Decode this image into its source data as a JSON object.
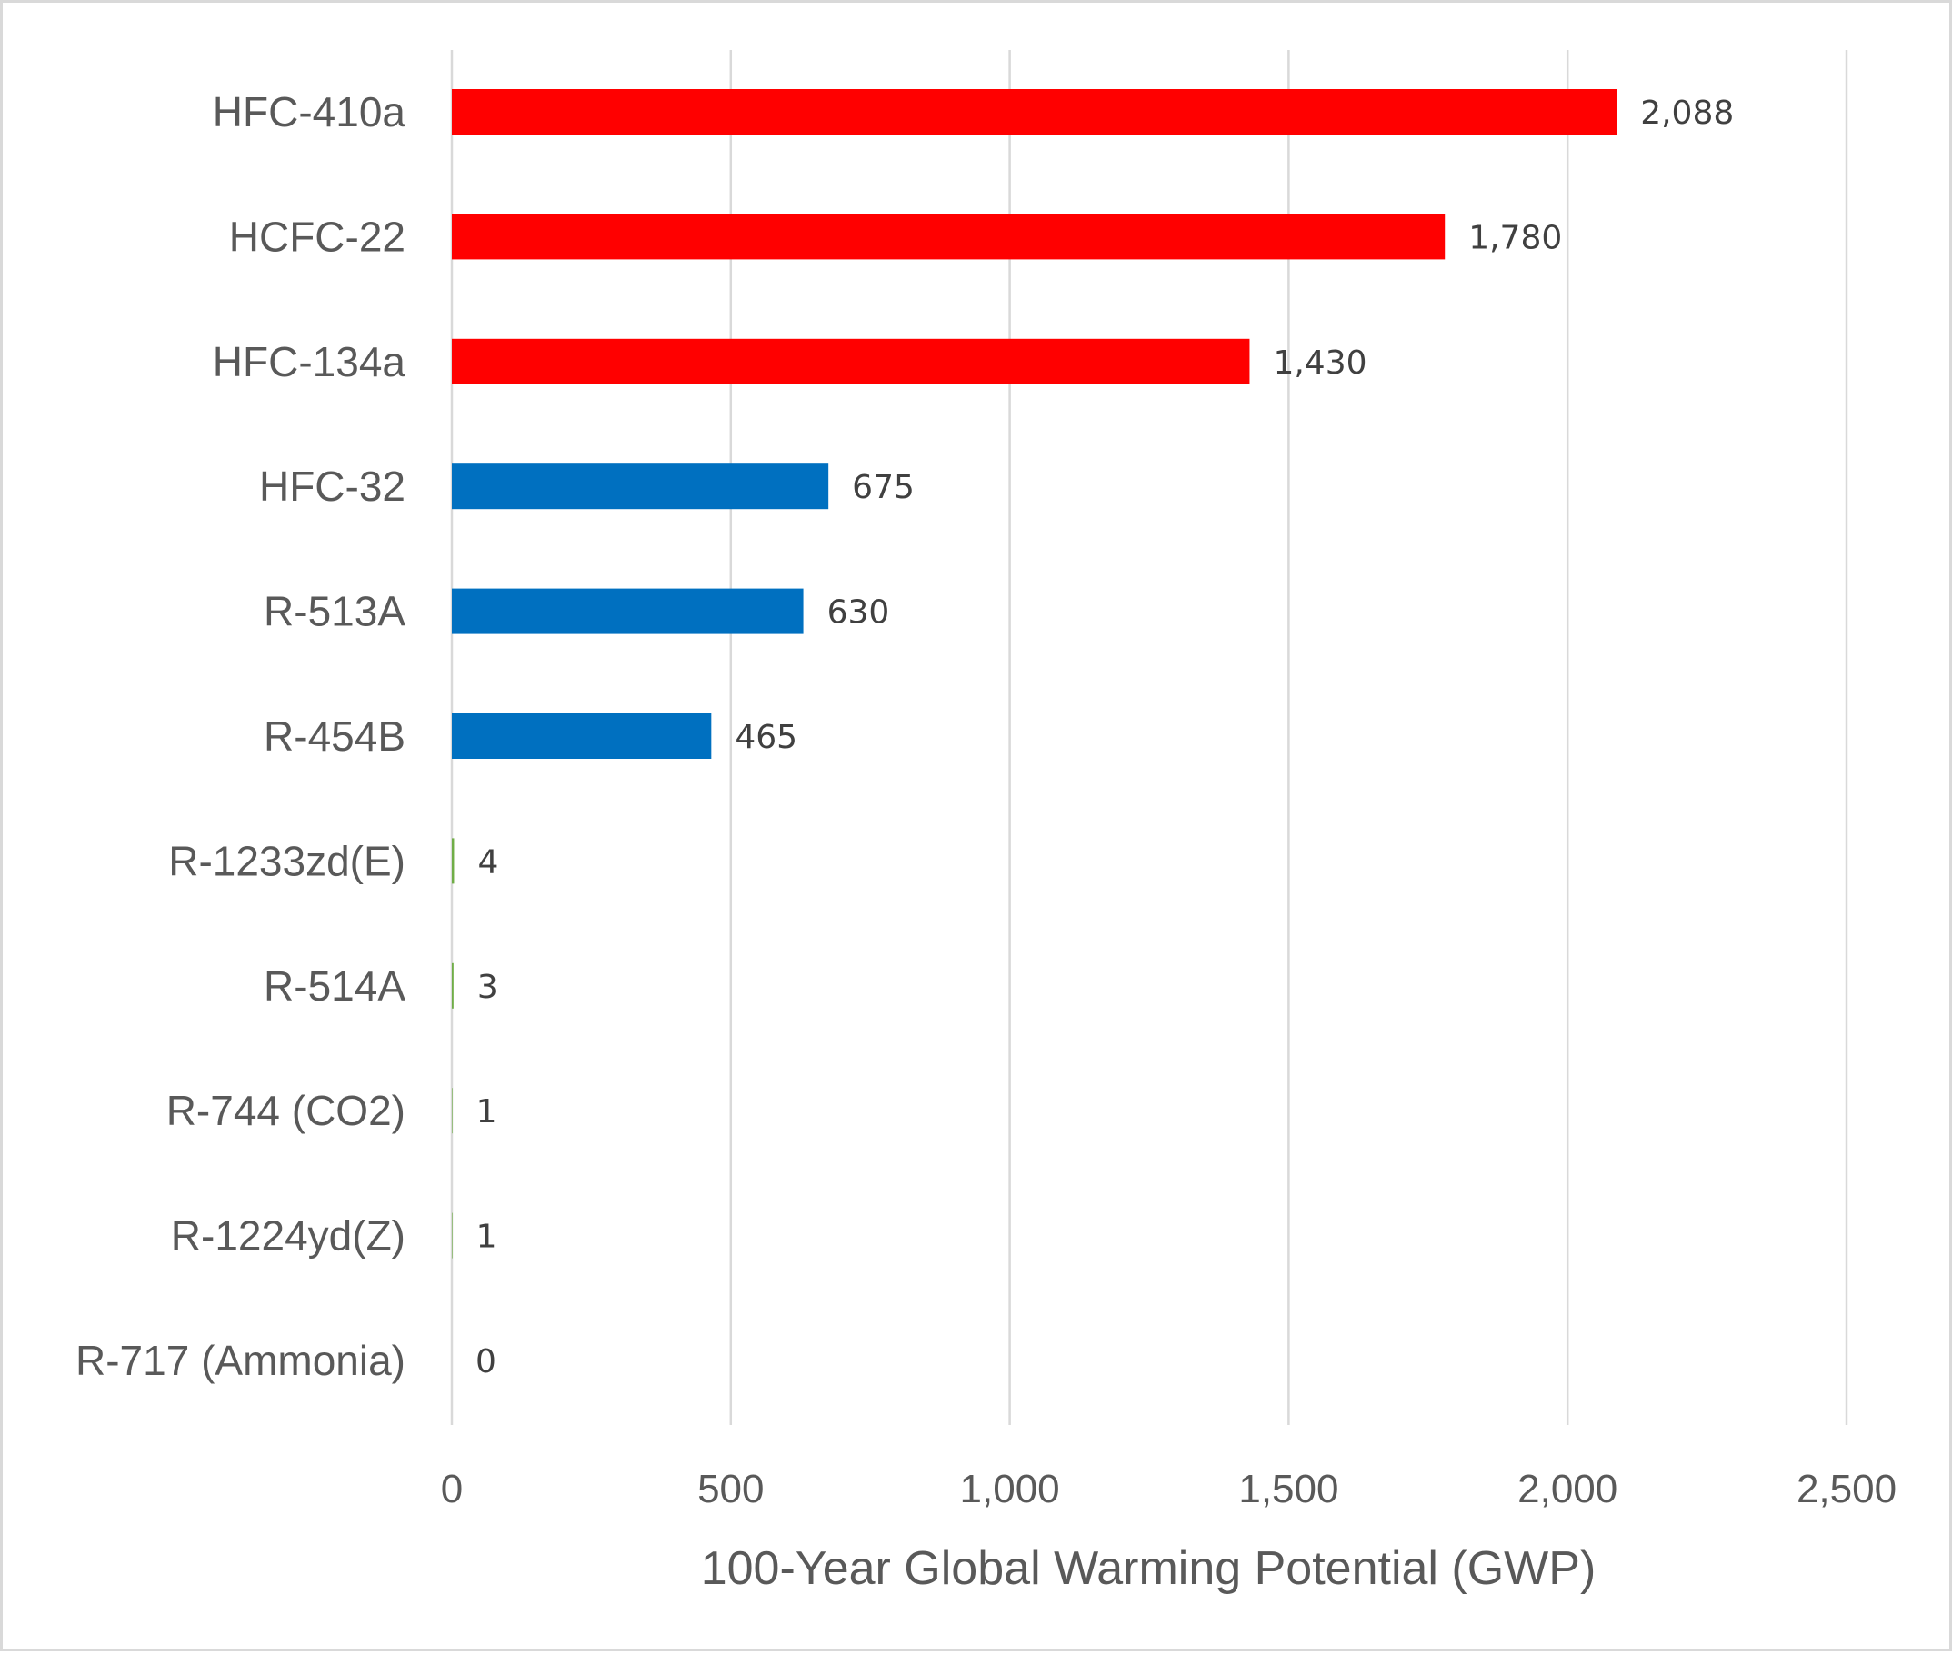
{
  "chart_data": {
    "type": "bar",
    "orientation": "horizontal",
    "title": "",
    "xlabel": "100-Year Global Warming Potential (GWP)",
    "ylabel": "",
    "xlim": [
      0,
      2500
    ],
    "x_ticks": [
      0,
      500,
      1000,
      1500,
      2000,
      2500
    ],
    "x_tick_labels": [
      "0",
      "500",
      "1,000",
      "1,500",
      "2,000",
      "2,500"
    ],
    "grid": "vertical",
    "legend": "none",
    "categories": [
      "HFC-410a",
      "HCFC-22",
      "HFC-134a",
      "HFC-32",
      "R-513A",
      "R-454B",
      "R-1233zd(E)",
      "R-514A",
      "R-744 (CO2)",
      "R-1224yd(Z)",
      "R-717 (Ammonia)"
    ],
    "values": [
      2088,
      1780,
      1430,
      675,
      630,
      465,
      4,
      3,
      1,
      1,
      0
    ],
    "data_labels": [
      "2,088",
      "1,780",
      "1,430",
      "675",
      "630",
      "465",
      "4",
      "3",
      "1",
      "1",
      "0"
    ],
    "bar_colors": [
      "#ff0000",
      "#ff0000",
      "#ff0000",
      "#0070c0",
      "#0070c0",
      "#0070c0",
      "#70ad47",
      "#70ad47",
      "#70ad47",
      "#70ad47",
      "#70ad47"
    ]
  }
}
